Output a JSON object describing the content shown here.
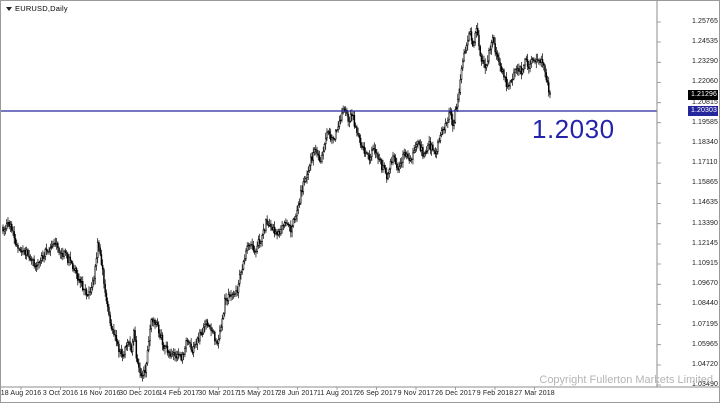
{
  "chart": {
    "symbol_label": "EURUSD,Daily"
  },
  "annotation": {
    "text": "1.2030"
  },
  "copyright_text": "Copyright Fullerton Markets Limited",
  "price_axis": {
    "tick_labels": [
      "1.25765",
      "1.24535",
      "1.23290",
      "1.22060",
      "1.20815",
      "1.19585",
      "1.18340",
      "1.17110",
      "1.15865",
      "1.14635",
      "1.13390",
      "1.12145",
      "1.10915",
      "1.09670",
      "1.08440",
      "1.07195",
      "1.05965",
      "1.04720",
      "1.03490"
    ],
    "bid_label": {
      "text": "1.21296",
      "value": 1.21296
    },
    "line_label": {
      "text": "1.20303",
      "value": 1.20303
    }
  },
  "date_axis": {
    "tick_labels": [
      "18 Aug 2016",
      "3 Oct 2016",
      "16 Nov 2016",
      "30 Dec 2016",
      "14 Feb 2017",
      "30 Mar 2017",
      "15 May 2017",
      "28 Jun 2017",
      "11 Aug 2017",
      "26 Sep 2017",
      "9 Nov 2017",
      "26 Dec 2017",
      "9 Feb 2018",
      "27 Mar 2018"
    ]
  },
  "colors": {
    "blue_line": "#25259c",
    "annotation_blue": "#2424aa",
    "bid_bg": "#000000",
    "label_text_on_dark": "#ffffff",
    "candle_black": "#000000",
    "axis_text": "#1c1c1c",
    "copyright_gray": "#b5b5b5",
    "separator_gray": "#8c8c8c"
  },
  "chart_data": {
    "type": "candlestick",
    "symbol": "EURUSD",
    "timeframe": "Daily",
    "title": "EURUSD,Daily",
    "y_range": [
      1.0349,
      1.25765
    ],
    "y_tick_values": [
      1.25765,
      1.24535,
      1.2329,
      1.2206,
      1.21296,
      1.20815,
      1.20303,
      1.19585,
      1.1834,
      1.1711,
      1.15865,
      1.14635,
      1.1339,
      1.12145,
      1.10915,
      1.0967,
      1.0844,
      1.07195,
      1.05965,
      1.0472,
      1.0349
    ],
    "x_tick_dates": [
      "18 Aug 2016",
      "3 Oct 2016",
      "16 Nov 2016",
      "30 Dec 2016",
      "14 Feb 2017",
      "30 Mar 2017",
      "15 May 2017",
      "28 Jun 2017",
      "11 Aug 2017",
      "26 Sep 2017",
      "9 Nov 2017",
      "26 Dec 2017",
      "9 Feb 2018",
      "27 Mar 2018"
    ],
    "horizontal_line_price": 1.20303,
    "current_bid": 1.21296,
    "annotation_price_label": "1.2030",
    "bars_rendered": 440,
    "grid": "off",
    "price_path": [
      [
        2,
        1.13
      ],
      [
        8,
        1.134
      ],
      [
        16,
        1.121
      ],
      [
        26,
        1.116
      ],
      [
        34,
        1.108
      ],
      [
        42,
        1.115
      ],
      [
        52,
        1.122
      ],
      [
        60,
        1.117
      ],
      [
        70,
        1.11
      ],
      [
        80,
        1.097
      ],
      [
        88,
        1.09
      ],
      [
        94,
        1.104
      ],
      [
        97,
        1.125
      ],
      [
        100,
        1.113
      ],
      [
        104,
        1.093
      ],
      [
        110,
        1.072
      ],
      [
        116,
        1.06
      ],
      [
        122,
        1.052
      ],
      [
        126,
        1.063
      ],
      [
        130,
        1.055
      ],
      [
        133,
        1.07
      ],
      [
        136,
        1.048
      ],
      [
        140,
        1.04
      ],
      [
        145,
        1.046
      ],
      [
        150,
        1.076
      ],
      [
        156,
        1.071
      ],
      [
        162,
        1.06
      ],
      [
        168,
        1.055
      ],
      [
        174,
        1.053
      ],
      [
        181,
        1.051
      ],
      [
        186,
        1.062
      ],
      [
        192,
        1.056
      ],
      [
        198,
        1.064
      ],
      [
        204,
        1.073
      ],
      [
        210,
        1.068
      ],
      [
        216,
        1.062
      ],
      [
        221,
        1.072
      ],
      [
        224,
        1.087
      ],
      [
        230,
        1.09
      ],
      [
        236,
        1.093
      ],
      [
        242,
        1.11
      ],
      [
        248,
        1.122
      ],
      [
        254,
        1.118
      ],
      [
        260,
        1.125
      ],
      [
        266,
        1.136
      ],
      [
        272,
        1.13
      ],
      [
        278,
        1.128
      ],
      [
        284,
        1.136
      ],
      [
        290,
        1.13
      ],
      [
        296,
        1.142
      ],
      [
        302,
        1.158
      ],
      [
        308,
        1.17
      ],
      [
        314,
        1.18
      ],
      [
        320,
        1.173
      ],
      [
        326,
        1.19
      ],
      [
        332,
        1.184
      ],
      [
        338,
        1.195
      ],
      [
        343,
        1.204
      ],
      [
        347,
        1.198
      ],
      [
        351,
        1.201
      ],
      [
        356,
        1.19
      ],
      [
        362,
        1.18
      ],
      [
        368,
        1.174
      ],
      [
        374,
        1.18
      ],
      [
        380,
        1.17
      ],
      [
        386,
        1.163
      ],
      [
        392,
        1.175
      ],
      [
        398,
        1.168
      ],
      [
        404,
        1.178
      ],
      [
        410,
        1.171
      ],
      [
        416,
        1.184
      ],
      [
        422,
        1.177
      ],
      [
        428,
        1.183
      ],
      [
        434,
        1.176
      ],
      [
        440,
        1.188
      ],
      [
        445,
        1.197
      ],
      [
        449,
        1.203
      ],
      [
        452,
        1.195
      ],
      [
        456,
        1.207
      ],
      [
        460,
        1.225
      ],
      [
        464,
        1.241
      ],
      [
        468,
        1.252
      ],
      [
        472,
        1.244
      ],
      [
        476,
        1.253
      ],
      [
        480,
        1.235
      ],
      [
        484,
        1.228
      ],
      [
        488,
        1.24
      ],
      [
        492,
        1.247
      ],
      [
        496,
        1.236
      ],
      [
        500,
        1.229
      ],
      [
        504,
        1.222
      ],
      [
        508,
        1.217
      ],
      [
        512,
        1.224
      ],
      [
        516,
        1.231
      ],
      [
        520,
        1.227
      ],
      [
        524,
        1.235
      ],
      [
        528,
        1.231
      ],
      [
        532,
        1.237
      ],
      [
        536,
        1.233
      ],
      [
        540,
        1.235
      ],
      [
        543,
        1.229
      ],
      [
        546,
        1.221
      ],
      [
        549,
        1.213
      ]
    ]
  }
}
